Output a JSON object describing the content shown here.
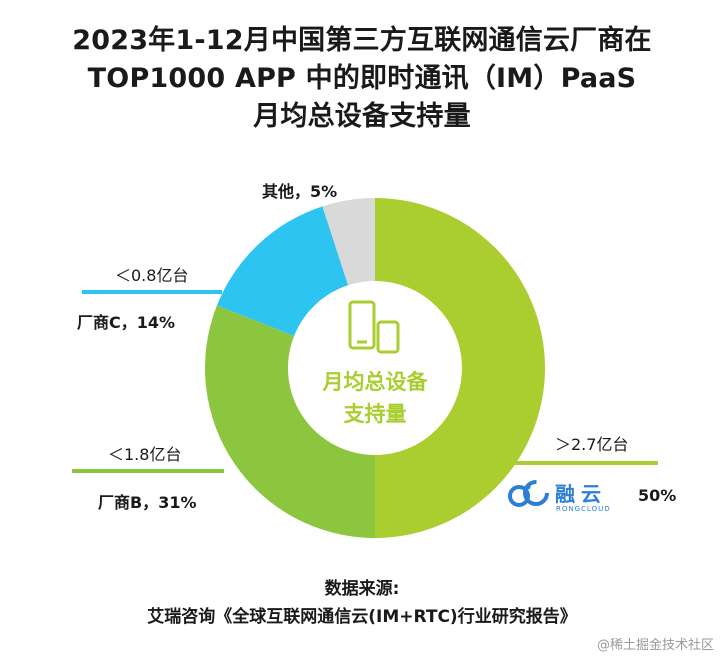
{
  "title_lines": [
    "2023年1-12月中国第三方互联网通信云厂商在",
    "TOP1000 APP 中的即时通讯（IM）PaaS",
    "月均总设备支持量"
  ],
  "center": {
    "line1": "月均总设备",
    "line2": "支持量",
    "icon": "phone-tablet-icon"
  },
  "chart_data": {
    "type": "pie",
    "donut": true,
    "slices": [
      {
        "label": "融云",
        "value": 50,
        "display": "50%",
        "color": "#aacd2f",
        "annotation": "＞2.7亿台"
      },
      {
        "label": "厂商B",
        "value": 31,
        "display": "厂商B，31%",
        "color": "#8cc63f",
        "annotation": "＜1.8亿台"
      },
      {
        "label": "厂商C",
        "value": 14,
        "display": "厂商C，14%",
        "color": "#2ec4f2",
        "annotation": "＜0.8亿台"
      },
      {
        "label": "其他",
        "value": 5,
        "display": "其他，5%",
        "color": "#d9d9d9",
        "annotation": ""
      }
    ]
  },
  "logo": {
    "name": "融云",
    "sub": "RONGCLOUD",
    "icon": "rongcloud-logo-icon",
    "color": "#2b7fd4"
  },
  "source": {
    "label": "数据来源:",
    "text": "艾瑞咨询《全球互联网通信云(IM+RTC)行业研究报告》"
  },
  "watermark": "@稀土掘金技术社区"
}
